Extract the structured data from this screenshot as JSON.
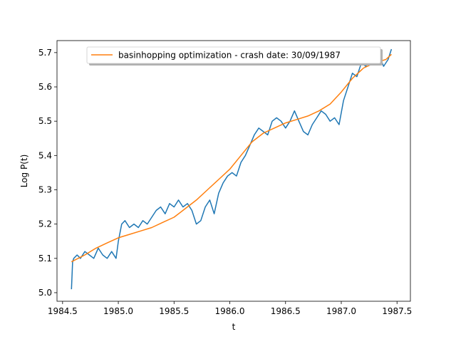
{
  "chart_data": {
    "type": "line",
    "title": "",
    "xlabel": "t",
    "ylabel": "Log P(t)",
    "xlim": [
      1984.45,
      1987.62
    ],
    "ylim": [
      4.975,
      5.735
    ],
    "x_ticks": [
      1984.5,
      1985.0,
      1985.5,
      1986.0,
      1986.5,
      1987.0,
      1987.5
    ],
    "x_tick_labels": [
      "1984.5",
      "1985.0",
      "1985.5",
      "1986.0",
      "1986.5",
      "1987.0",
      "1987.5"
    ],
    "y_ticks": [
      5.0,
      5.1,
      5.2,
      5.3,
      5.4,
      5.5,
      5.6,
      5.7
    ],
    "y_tick_labels": [
      "5.0",
      "5.1",
      "5.2",
      "5.3",
      "5.4",
      "5.5",
      "5.6",
      "5.7"
    ],
    "grid": false,
    "legend_position": "top-center",
    "series": [
      {
        "name": "",
        "color": "#1f77b4",
        "x": [
          1984.58,
          1984.59,
          1984.6,
          1984.63,
          1984.66,
          1984.7,
          1984.74,
          1984.78,
          1984.82,
          1984.86,
          1984.9,
          1984.94,
          1984.98,
          1985.0,
          1985.03,
          1985.06,
          1985.1,
          1985.14,
          1985.18,
          1985.22,
          1985.26,
          1985.3,
          1985.34,
          1985.38,
          1985.42,
          1985.46,
          1985.5,
          1985.54,
          1985.58,
          1985.62,
          1985.66,
          1985.7,
          1985.74,
          1985.78,
          1985.82,
          1985.86,
          1985.9,
          1985.94,
          1985.98,
          1986.02,
          1986.06,
          1986.1,
          1986.14,
          1986.18,
          1986.22,
          1986.26,
          1986.3,
          1986.34,
          1986.38,
          1986.42,
          1986.46,
          1986.5,
          1986.54,
          1986.58,
          1986.62,
          1986.66,
          1986.7,
          1986.74,
          1986.78,
          1986.82,
          1986.86,
          1986.9,
          1986.94,
          1986.98,
          1987.02,
          1987.06,
          1987.1,
          1987.14,
          1987.18,
          1987.22,
          1987.26,
          1987.3,
          1987.34,
          1987.38,
          1987.42,
          1987.45
        ],
        "values": [
          5.01,
          5.09,
          5.1,
          5.11,
          5.1,
          5.12,
          5.11,
          5.1,
          5.13,
          5.11,
          5.1,
          5.12,
          5.1,
          5.15,
          5.2,
          5.21,
          5.19,
          5.2,
          5.19,
          5.21,
          5.2,
          5.22,
          5.24,
          5.25,
          5.23,
          5.26,
          5.25,
          5.27,
          5.25,
          5.26,
          5.24,
          5.2,
          5.21,
          5.25,
          5.27,
          5.23,
          5.29,
          5.32,
          5.34,
          5.35,
          5.34,
          5.38,
          5.4,
          5.43,
          5.46,
          5.48,
          5.47,
          5.46,
          5.5,
          5.51,
          5.5,
          5.48,
          5.5,
          5.53,
          5.5,
          5.47,
          5.46,
          5.49,
          5.51,
          5.53,
          5.52,
          5.5,
          5.51,
          5.49,
          5.56,
          5.6,
          5.64,
          5.63,
          5.67,
          5.66,
          5.68,
          5.67,
          5.69,
          5.66,
          5.68,
          5.71
        ]
      },
      {
        "name": "basinhopping optimization - crash date: 30/09/1987",
        "color": "#ff7f0e",
        "x": [
          1984.58,
          1984.7,
          1984.8,
          1984.9,
          1985.0,
          1985.1,
          1985.2,
          1985.3,
          1985.4,
          1985.5,
          1985.6,
          1985.7,
          1985.8,
          1985.9,
          1986.0,
          1986.1,
          1986.2,
          1986.3,
          1986.4,
          1986.5,
          1986.6,
          1986.7,
          1986.8,
          1986.9,
          1987.0,
          1987.1,
          1987.2,
          1987.3,
          1987.4,
          1987.45
        ],
        "values": [
          5.09,
          5.11,
          5.13,
          5.145,
          5.16,
          5.17,
          5.18,
          5.19,
          5.205,
          5.22,
          5.245,
          5.27,
          5.3,
          5.33,
          5.36,
          5.4,
          5.44,
          5.465,
          5.48,
          5.495,
          5.505,
          5.515,
          5.53,
          5.55,
          5.585,
          5.625,
          5.655,
          5.67,
          5.68,
          5.695
        ]
      }
    ]
  }
}
